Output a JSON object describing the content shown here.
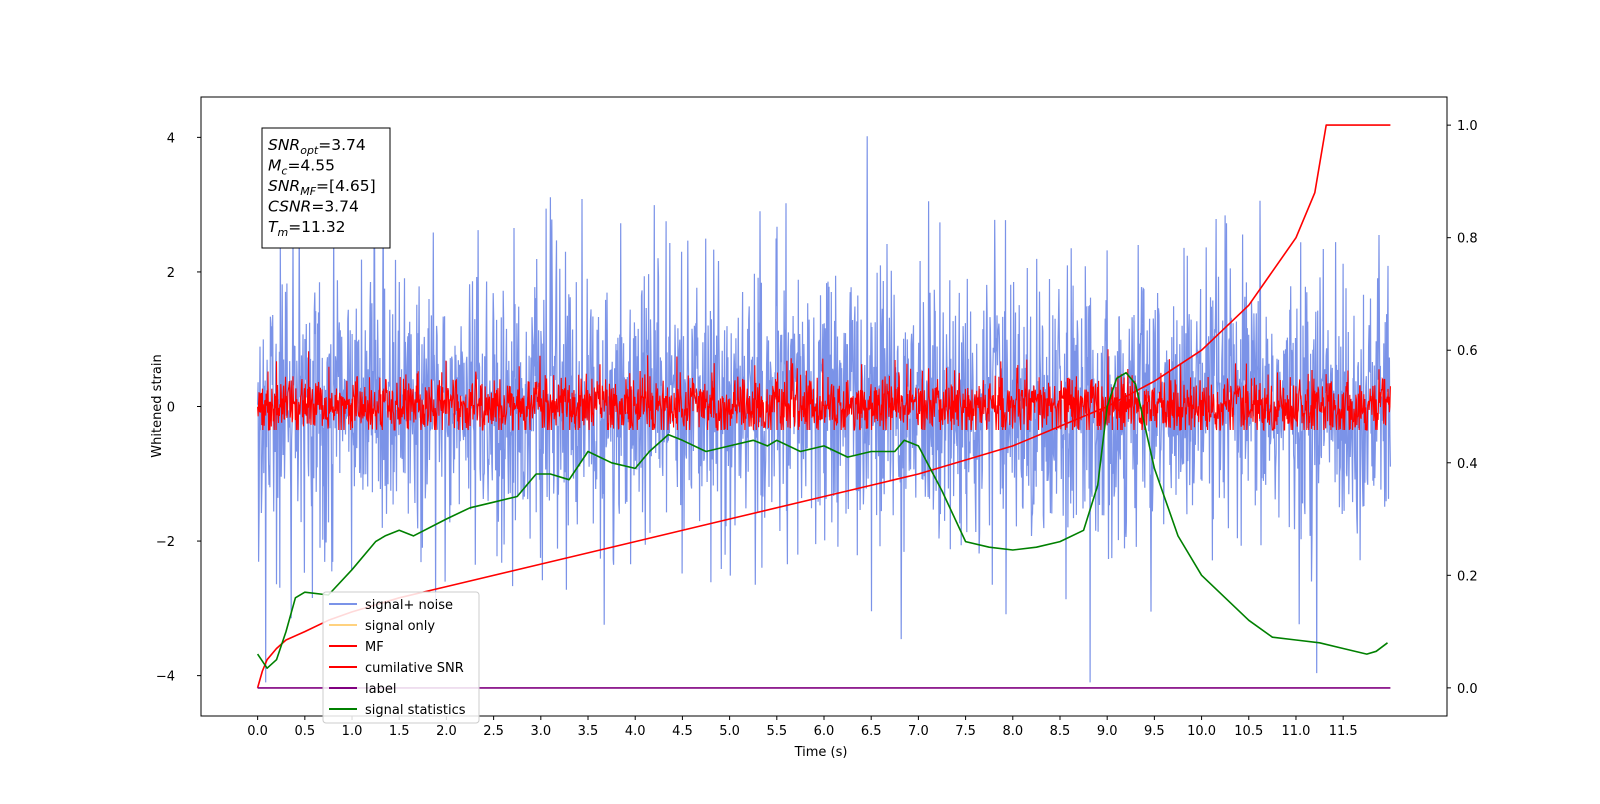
{
  "chart_data": {
    "type": "line",
    "title": "",
    "xlabel": "Time (s)",
    "ylabel": "Whitened strain",
    "xlim": [
      -0.6,
      12.6
    ],
    "ylim": [
      -4.6,
      4.6
    ],
    "y2lim": [
      -0.05,
      1.05
    ],
    "x_ticks": [
      0.0,
      0.5,
      1.0,
      1.5,
      2.0,
      2.5,
      3.0,
      3.5,
      4.0,
      4.5,
      5.0,
      5.5,
      6.0,
      6.5,
      7.0,
      7.5,
      8.0,
      8.5,
      9.0,
      9.5,
      10.0,
      10.5,
      11.0,
      11.5
    ],
    "x_tick_labels": [
      "0.0",
      "0.5",
      "1.0",
      "1.5",
      "2.0",
      "2.5",
      "3.0",
      "3.5",
      "4.0",
      "4.5",
      "5.0",
      "5.5",
      "6.0",
      "6.5",
      "7.0",
      "7.5",
      "8.0",
      "8.5",
      "9.0",
      "9.5",
      "10.0",
      "10.5",
      "11.0",
      "11.5"
    ],
    "y_ticks": [
      -4,
      -2,
      0,
      2,
      4
    ],
    "y_tick_labels": [
      "−4",
      "−2",
      "0",
      "2",
      "4"
    ],
    "y2_ticks": [
      0.0,
      0.2,
      0.4,
      0.6,
      0.8,
      1.0
    ],
    "y2_tick_labels": [
      "0.0",
      "0.2",
      "0.4",
      "0.6",
      "0.8",
      "1.0"
    ],
    "grid": false,
    "legend_position": "bottom-left",
    "series": [
      {
        "name": "signal+ noise",
        "color": "#7b93e8",
        "axis": "left",
        "style": "noise",
        "x_range": [
          0.0,
          12.0
        ],
        "center": 0.0,
        "approx_min": -4.1,
        "approx_max": 4.1,
        "typical_amplitude": 1.3
      },
      {
        "name": "signal only",
        "color": "#ffd27f",
        "axis": "left",
        "x": [],
        "y": []
      },
      {
        "name": "MF",
        "color": "#ff0000",
        "axis": "left",
        "style": "noise",
        "x_range": [
          0.0,
          12.0
        ],
        "center": 0.0,
        "approx_min": -0.35,
        "approx_max": 0.85,
        "typical_amplitude": 0.3
      },
      {
        "name": "cumilative SNR",
        "color": "#ff0000",
        "axis": "right",
        "x": [
          0.0,
          0.05,
          0.1,
          0.2,
          0.3,
          0.5,
          0.75,
          1.0,
          1.5,
          2.0,
          3.0,
          4.0,
          5.0,
          6.0,
          7.0,
          7.5,
          8.0,
          8.5,
          9.0,
          9.5,
          10.0,
          10.5,
          11.0,
          11.2,
          11.32,
          12.0
        ],
        "y": [
          0.0,
          0.03,
          0.05,
          0.07,
          0.085,
          0.1,
          0.12,
          0.135,
          0.16,
          0.18,
          0.22,
          0.26,
          0.3,
          0.34,
          0.38,
          0.405,
          0.43,
          0.465,
          0.5,
          0.545,
          0.6,
          0.68,
          0.8,
          0.88,
          1.0,
          1.0
        ]
      },
      {
        "name": "label",
        "color": "#800080",
        "axis": "right",
        "x": [
          0.0,
          12.0
        ],
        "y": [
          0.0,
          0.0
        ]
      },
      {
        "name": "signal statistics",
        "color": "#008000",
        "axis": "right",
        "x": [
          0.0,
          0.1,
          0.2,
          0.3,
          0.4,
          0.5,
          0.75,
          1.0,
          1.25,
          1.35,
          1.5,
          1.65,
          2.0,
          2.25,
          2.5,
          2.75,
          2.95,
          3.1,
          3.3,
          3.5,
          3.75,
          4.0,
          4.15,
          4.35,
          4.5,
          4.75,
          5.0,
          5.25,
          5.4,
          5.5,
          5.75,
          6.0,
          6.25,
          6.5,
          6.75,
          6.85,
          7.0,
          7.25,
          7.5,
          7.75,
          8.0,
          8.25,
          8.5,
          8.75,
          8.9,
          9.0,
          9.1,
          9.2,
          9.3,
          9.5,
          9.75,
          10.0,
          10.25,
          10.5,
          10.75,
          11.0,
          11.25,
          11.5,
          11.75,
          11.85,
          11.97
        ],
        "y": [
          0.06,
          0.035,
          0.05,
          0.1,
          0.16,
          0.17,
          0.165,
          0.21,
          0.26,
          0.27,
          0.28,
          0.27,
          0.3,
          0.32,
          0.33,
          0.34,
          0.38,
          0.38,
          0.37,
          0.42,
          0.4,
          0.39,
          0.42,
          0.45,
          0.44,
          0.42,
          0.43,
          0.44,
          0.43,
          0.44,
          0.42,
          0.43,
          0.41,
          0.42,
          0.42,
          0.44,
          0.43,
          0.35,
          0.26,
          0.25,
          0.245,
          0.25,
          0.26,
          0.28,
          0.36,
          0.5,
          0.55,
          0.56,
          0.54,
          0.39,
          0.27,
          0.2,
          0.16,
          0.12,
          0.09,
          0.085,
          0.08,
          0.07,
          0.06,
          0.065,
          0.08
        ]
      }
    ],
    "info_box": {
      "lines": [
        {
          "label": "SNR",
          "sub": "opt",
          "value": "=3.74"
        },
        {
          "label": "M",
          "sub": "c",
          "value": "=4.55"
        },
        {
          "label": "SNR",
          "sub": "MF",
          "value": "=[4.65]"
        },
        {
          "label": "CSNR",
          "sub": "",
          "value": "=3.74"
        },
        {
          "label": "T",
          "sub": "m",
          "value": "=11.32"
        }
      ]
    }
  }
}
